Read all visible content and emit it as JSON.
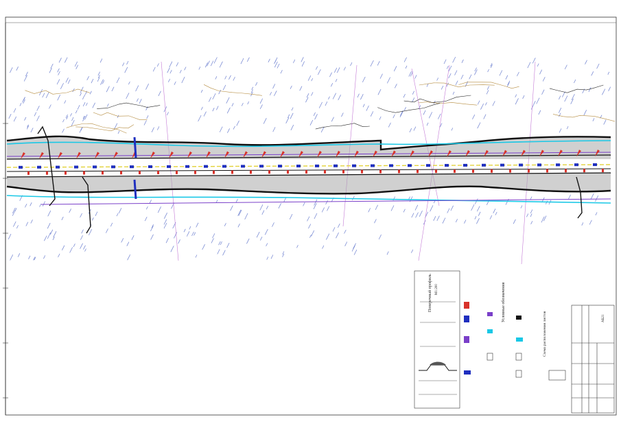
{
  "drawing": {
    "title_block": {
      "stamp_left_top": "AБ21",
      "code": "",
      "rows": [
        "",
        "",
        "",
        ""
      ]
    },
    "legend": {
      "heading": "Условные обозначения",
      "items": [
        "",
        "",
        "",
        "",
        "",
        "",
        "",
        "",
        "",
        ""
      ]
    },
    "section": {
      "heading": "Поперечный профиль",
      "scale": "М1:200"
    },
    "note_vertical": "Схема расположения листов",
    "colors": {
      "road_black": "#111111",
      "cyan_edge": "#19c8e6",
      "purple_line": "#7a3fc9",
      "blue_marker": "#1f2fbf",
      "red_marker": "#d8322a",
      "terrain_brown": "#b48a3c",
      "grass_blue": "#6c7fcf",
      "yellow_axis": "#e2d23a"
    }
  }
}
